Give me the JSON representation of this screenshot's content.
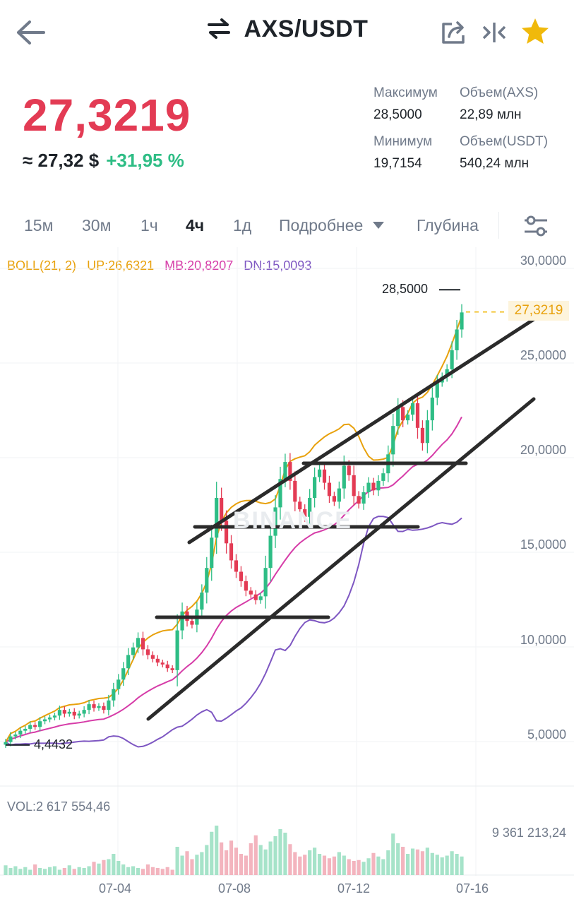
{
  "header": {
    "back_icon": "arrow-left-icon",
    "swap_icon": "swap-arrows-icon",
    "pair": "AXS/USDT",
    "share_icon": "share-icon",
    "compare_icon": "compare-icon",
    "favorite_icon": "star-icon",
    "accent": "#f0b90b"
  },
  "price": {
    "last": "27,3219",
    "approx": "≈ 27,32 $",
    "change": "+31,95 %",
    "color_down": "#e33b54",
    "color_up": "#2ebd85"
  },
  "stats": {
    "high_label": "Максимум",
    "high": "28,5000",
    "low_label": "Минимум",
    "low": "19,7154",
    "vol_base_label": "Объем(AXS)",
    "vol_base": "22,89 млн",
    "vol_quote_label": "Объем(USDT)",
    "vol_quote": "540,24 млн"
  },
  "tabs": {
    "t15m": "15м",
    "t30m": "30м",
    "t1h": "1ч",
    "t4h": "4ч",
    "t1d": "1д",
    "more": "Подробнее",
    "depth": "Глубина",
    "active": "4ч",
    "settings_icon": "sliders-icon"
  },
  "indicator": {
    "boll": "BOLL(21, 2)",
    "up": "UP:26,6321",
    "mb": "MB:20,8207",
    "dn": "DN:15,0093",
    "up_color": "#e8a10c",
    "mb_color": "#d63ca8",
    "dn_color": "#7e57c2"
  },
  "chart_data": {
    "type": "candlestick",
    "y_ticks": [
      "30,0000",
      "25,0000",
      "20,0000",
      "15,0000",
      "10,0000",
      "5,0000"
    ],
    "ylim": [
      3.0,
      30.5
    ],
    "x_ticks": [
      "07-04",
      "07-08",
      "07-12",
      "07-16"
    ],
    "high_marker": "28,5000",
    "low_marker": "4,4432",
    "last_price_tag": "27,3219",
    "watermark": "BINANCE",
    "closes": [
      4.6,
      4.9,
      5.0,
      5.2,
      5.3,
      5.5,
      5.4,
      5.7,
      5.8,
      5.9,
      6.0,
      6.3,
      6.1,
      6.2,
      6.0,
      6.1,
      6.3,
      6.6,
      6.4,
      6.5,
      6.3,
      6.8,
      7.4,
      7.9,
      8.5,
      9.2,
      9.6,
      10.1,
      9.5,
      9.2,
      9.0,
      8.8,
      8.7,
      8.5,
      8.4,
      10.5,
      11.5,
      11.0,
      10.8,
      11.6,
      12.5,
      13.8,
      15.4,
      17.5,
      16.3,
      15.1,
      14.2,
      13.6,
      13.1,
      12.6,
      12.4,
      12.1,
      12.3,
      13.8,
      15.5,
      17.0,
      18.5,
      19.4,
      18.4,
      17.3,
      16.9,
      16.5,
      17.5,
      18.6,
      19.0,
      18.3,
      17.6,
      17.3,
      18.0,
      19.2,
      18.7,
      17.6,
      17.2,
      17.8,
      18.3,
      17.9,
      18.4,
      18.8,
      19.8,
      21.3,
      22.3,
      21.6,
      21.9,
      22.5,
      21.2,
      20.4,
      21.6,
      22.8,
      23.6,
      23.9,
      24.3,
      25.3,
      26.4,
      27.3
    ]
  },
  "trendlines_note": "",
  "volume": {
    "label": "VOL:2 617 554,46",
    "max_label": "9 361 213,24",
    "values": [
      1.1,
      0.8,
      1.0,
      0.7,
      0.9,
      0.6,
      1.2,
      0.8,
      0.7,
      0.9,
      1.0,
      0.6,
      0.8,
      1.1,
      0.7,
      0.9,
      0.8,
      1.0,
      1.5,
      1.3,
      1.7,
      1.8,
      2.4,
      1.6,
      1.2,
      0.9,
      1.0,
      0.8,
      0.7,
      1.2,
      0.9,
      0.8,
      0.7,
      0.9,
      0.6,
      3.2,
      2.2,
      2.7,
      1.8,
      2.3,
      2.6,
      3.4,
      4.9,
      5.6,
      3.7,
      2.8,
      3.9,
      3.1,
      2.4,
      2.2,
      3.6,
      4.5,
      3.4,
      2.9,
      3.8,
      4.4,
      5.2,
      4.8,
      3.5,
      2.6,
      2.1,
      2.3,
      2.8,
      3.1,
      2.4,
      2.2,
      1.9,
      2.1,
      2.6,
      2.2,
      1.8,
      1.6,
      1.7,
      1.5,
      1.9,
      2.5,
      2.1,
      1.8,
      2.8,
      4.7,
      3.6,
      3.2,
      2.4,
      3.0,
      2.9,
      2.7,
      3.1,
      2.5,
      2.3,
      2.0,
      2.2,
      2.7,
      2.4,
      2.1
    ]
  }
}
